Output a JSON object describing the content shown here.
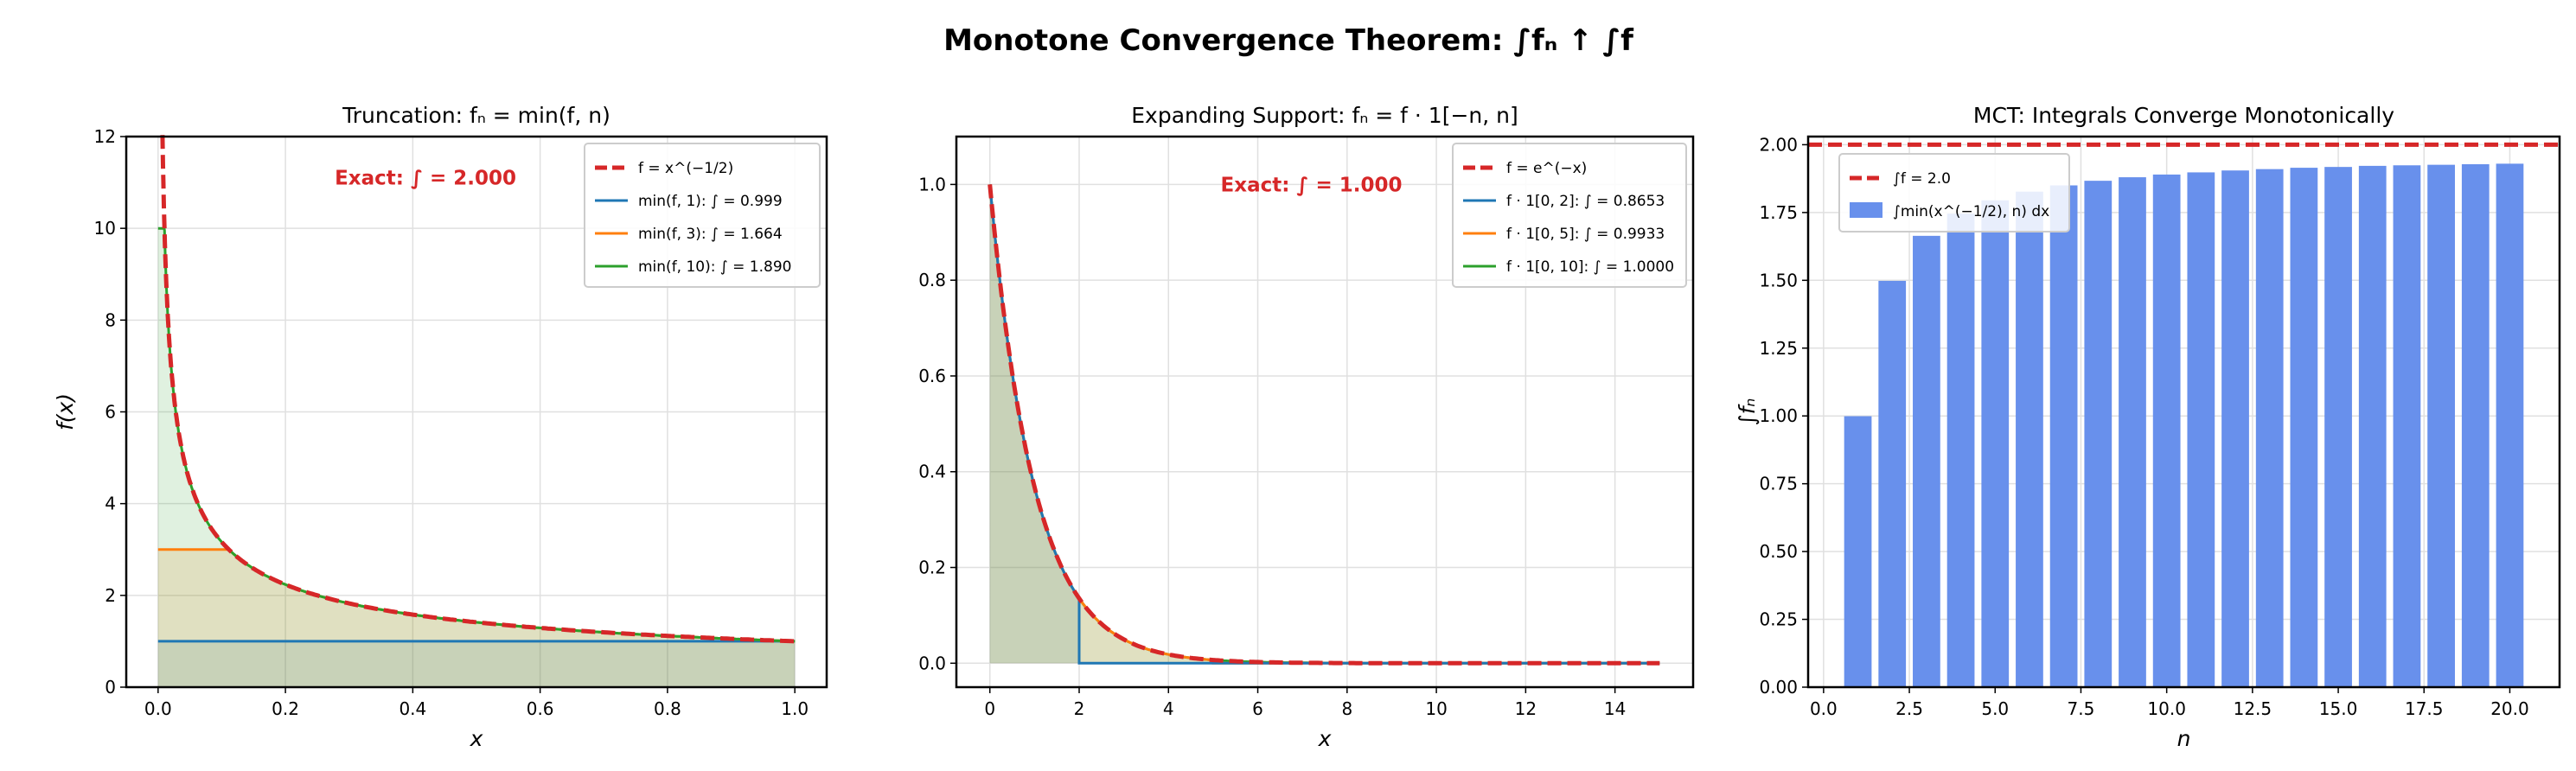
{
  "title": "Monotone Convergence Theorem: ∫fₙ ↑ ∫f",
  "colors": {
    "f": "#d62728",
    "c1": "#1f77b4",
    "c2": "#ff7f0e",
    "c3": "#2ca02c",
    "bar": "#6890ec"
  },
  "chart_data": [
    {
      "type": "line",
      "title": "Truncation: fₙ = min(f, n)",
      "xlabel": "x",
      "ylabel": "f(x)",
      "xlim": [
        -0.05,
        1.05
      ],
      "ylim": [
        0,
        12
      ],
      "xticks": [
        "0.0",
        "0.2",
        "0.4",
        "0.6",
        "0.8",
        "1.0"
      ],
      "yticks": [
        "0",
        "2",
        "4",
        "6",
        "8",
        "10",
        "12"
      ],
      "grid": true,
      "legend_position": "top-right",
      "annotation": "Exact: ∫ = 2.000",
      "function": "x^(-1/2)",
      "series": [
        {
          "name": "f = x^(−1/2)",
          "style": "dashed",
          "cap": null
        },
        {
          "name": "min(f, 1): ∫ = 0.999",
          "cap": 1
        },
        {
          "name": "min(f, 3): ∫ = 1.664",
          "cap": 3
        },
        {
          "name": "min(f, 10): ∫ = 1.890",
          "cap": 10
        }
      ]
    },
    {
      "type": "line",
      "title": "Expanding Support: fₙ = f · 1[−n, n]",
      "xlabel": "x",
      "ylabel": "",
      "xlim": [
        -0.75,
        15.75
      ],
      "ylim": [
        -0.05,
        1.1
      ],
      "xticks": [
        "0",
        "2",
        "4",
        "6",
        "8",
        "10",
        "12",
        "14"
      ],
      "yticks": [
        "0.0",
        "0.2",
        "0.4",
        "0.6",
        "0.8",
        "1.0"
      ],
      "grid": true,
      "legend_position": "top-right",
      "annotation": "Exact: ∫ = 1.000",
      "function": "e^(-x)",
      "series": [
        {
          "name": "f = e^(−x)",
          "style": "dashed",
          "support": null
        },
        {
          "name": "f · 1[0, 2]: ∫ = 0.8653",
          "support": 2
        },
        {
          "name": "f · 1[0, 5]: ∫ = 0.9933",
          "support": 5
        },
        {
          "name": "f · 1[0, 10]: ∫ = 1.0000",
          "support": 10
        }
      ]
    },
    {
      "type": "bar",
      "title": "MCT: Integrals Converge Monotonically",
      "xlabel": "n",
      "ylabel": "∫fₙ",
      "xlim": [
        -0.45,
        21.45
      ],
      "ylim": [
        0,
        2.03
      ],
      "xticks": [
        "0.0",
        "2.5",
        "5.0",
        "7.5",
        "10.0",
        "12.5",
        "15.0",
        "17.5",
        "20.0"
      ],
      "yticks": [
        "0.00",
        "0.25",
        "0.50",
        "0.75",
        "1.00",
        "1.25",
        "1.50",
        "1.75",
        "2.00"
      ],
      "grid": true,
      "legend_position": "top-left",
      "reference_line": {
        "name": "∫f = 2.0",
        "value": 2.0
      },
      "bar_series_name": "∫min(x^(−1/2), n) dx",
      "x": [
        1,
        2,
        3,
        4,
        5,
        6,
        7,
        8,
        9,
        10,
        11,
        12,
        13,
        14,
        15,
        16,
        17,
        18,
        19,
        20
      ],
      "values": [
        0.999,
        1.498,
        1.664,
        1.746,
        1.795,
        1.827,
        1.85,
        1.867,
        1.88,
        1.89,
        1.898,
        1.905,
        1.91,
        1.915,
        1.918,
        1.922,
        1.924,
        1.926,
        1.928,
        1.93
      ]
    }
  ]
}
